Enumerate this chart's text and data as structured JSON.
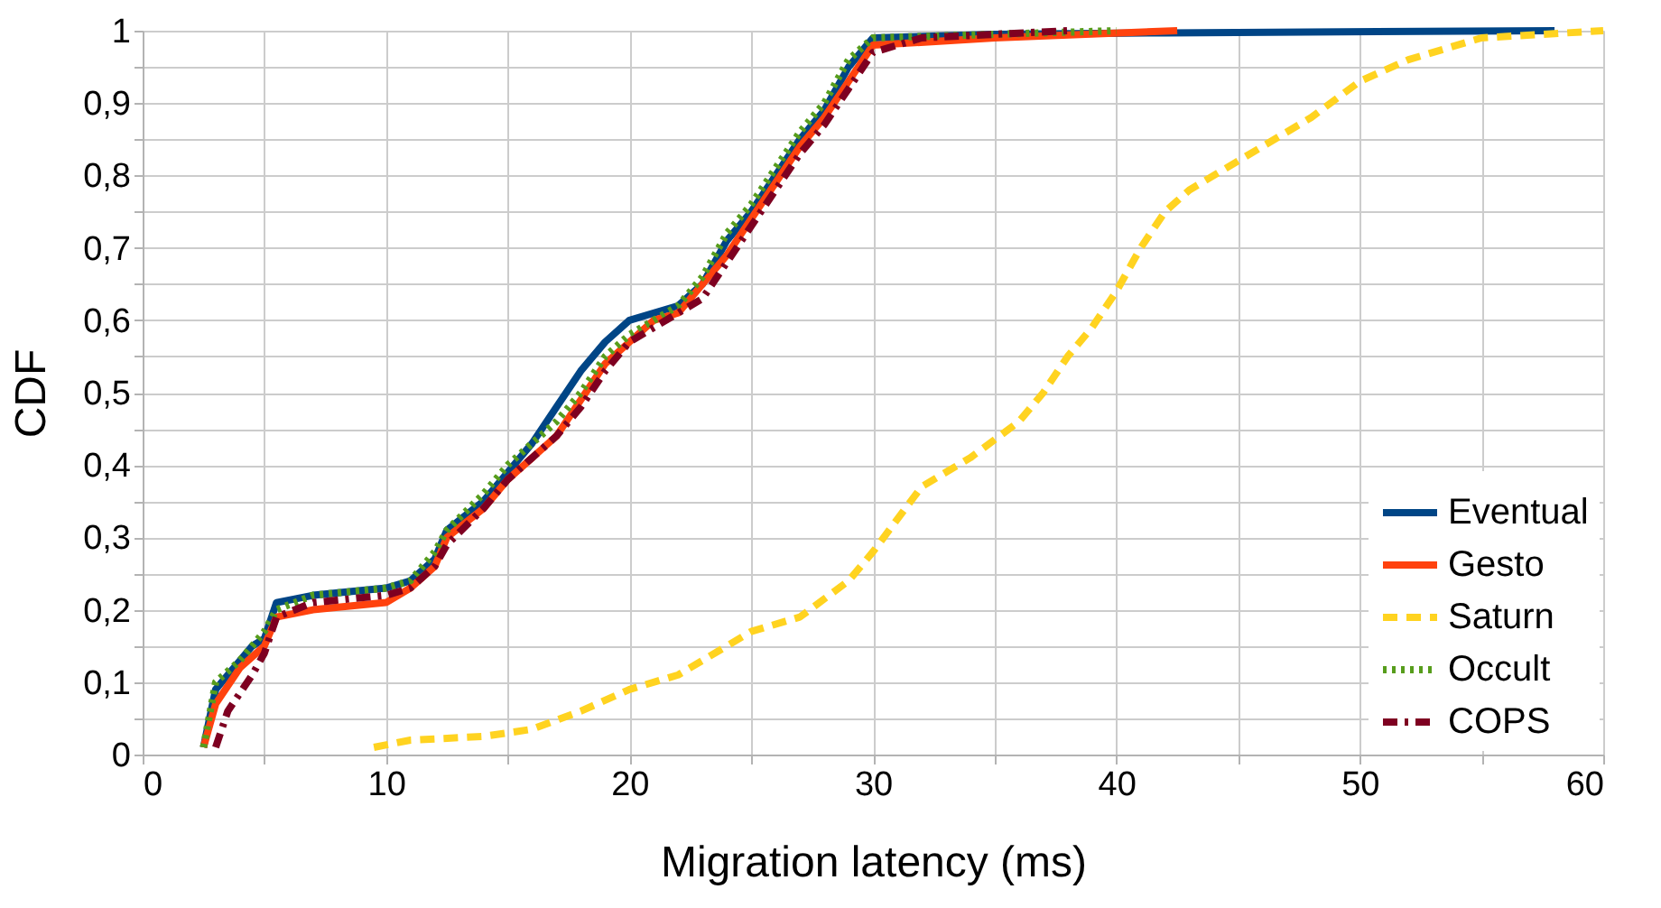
{
  "chart_data": {
    "type": "line",
    "xlabel": "Migration latency (ms)",
    "ylabel": "CDF",
    "xlim": [
      0,
      60
    ],
    "ylim": [
      0,
      1
    ],
    "xticks": [
      0,
      {
        "value": 5,
        "label": null
      },
      10,
      {
        "value": 15,
        "label": null
      },
      20,
      {
        "value": 25,
        "label": null
      },
      30,
      {
        "value": 35,
        "label": null
      },
      40,
      {
        "value": 45,
        "label": null
      },
      50,
      {
        "value": 55,
        "label": null
      },
      60
    ],
    "yticks": [
      0,
      {
        "value": 0.05,
        "label": null
      },
      {
        "value": 0.1,
        "label": "0,1"
      },
      {
        "value": 0.15,
        "label": null
      },
      {
        "value": 0.2,
        "label": "0,2"
      },
      {
        "value": 0.25,
        "label": null
      },
      {
        "value": 0.3,
        "label": "0,3"
      },
      {
        "value": 0.35,
        "label": null
      },
      {
        "value": 0.4,
        "label": "0,4"
      },
      {
        "value": 0.45,
        "label": null
      },
      {
        "value": 0.5,
        "label": "0,5"
      },
      {
        "value": 0.55,
        "label": null
      },
      {
        "value": 0.6,
        "label": "0,6"
      },
      {
        "value": 0.65,
        "label": null
      },
      {
        "value": 0.7,
        "label": "0,7"
      },
      {
        "value": 0.75,
        "label": null
      },
      {
        "value": 0.8,
        "label": "0,8"
      },
      {
        "value": 0.85,
        "label": null
      },
      {
        "value": 0.9,
        "label": "0,9"
      },
      {
        "value": 0.95,
        "label": null
      },
      1
    ],
    "grid": true,
    "legend": "bottom right",
    "marker": "none",
    "series": [
      {
        "name": "Eventual",
        "color": "#004586",
        "line_style": "solid",
        "x": [
          2.5,
          3,
          3.5,
          4.5,
          5,
          5.5,
          7,
          10,
          11,
          12,
          12.5,
          14,
          15,
          16,
          17,
          18,
          19,
          20,
          22,
          23,
          24,
          25,
          26,
          27,
          28,
          29,
          30,
          35,
          42,
          58
        ],
        "values": [
          0.01,
          0.09,
          0.11,
          0.15,
          0.16,
          0.21,
          0.22,
          0.23,
          0.24,
          0.27,
          0.31,
          0.35,
          0.39,
          0.43,
          0.48,
          0.53,
          0.57,
          0.6,
          0.62,
          0.65,
          0.71,
          0.75,
          0.8,
          0.85,
          0.89,
          0.95,
          0.99,
          0.995,
          0.997,
          1.0
        ]
      },
      {
        "name": "Gesto",
        "color": "#ff420e",
        "line_style": "solid",
        "x": [
          2.5,
          3,
          4,
          5,
          5.5,
          7,
          10,
          11,
          12,
          12.5,
          14,
          15,
          16,
          17,
          18,
          19,
          20,
          21,
          22,
          23,
          24,
          25,
          26,
          27,
          28,
          29,
          30,
          35,
          42.5
        ],
        "values": [
          0.01,
          0.07,
          0.12,
          0.15,
          0.19,
          0.2,
          0.21,
          0.23,
          0.26,
          0.3,
          0.34,
          0.38,
          0.41,
          0.44,
          0.49,
          0.54,
          0.57,
          0.6,
          0.61,
          0.65,
          0.69,
          0.74,
          0.79,
          0.84,
          0.88,
          0.93,
          0.98,
          0.99,
          1.0
        ]
      },
      {
        "name": "Saturn",
        "color": "#ffd320",
        "line_style": "dashed",
        "x": [
          9.5,
          11,
          14,
          16,
          18,
          20,
          22,
          23,
          25,
          27,
          29,
          30,
          32,
          34,
          36,
          37,
          38,
          39,
          40,
          41,
          42,
          43,
          44,
          46,
          48,
          50,
          52,
          55,
          60
        ],
        "values": [
          0.01,
          0.02,
          0.025,
          0.035,
          0.06,
          0.09,
          0.11,
          0.13,
          0.17,
          0.19,
          0.24,
          0.28,
          0.37,
          0.41,
          0.46,
          0.5,
          0.55,
          0.59,
          0.64,
          0.7,
          0.75,
          0.78,
          0.8,
          0.84,
          0.88,
          0.93,
          0.96,
          0.99,
          1.0
        ]
      },
      {
        "name": "Occult",
        "color": "#579d1c",
        "line_style": "dotted",
        "x": [
          2.5,
          3,
          4,
          5,
          5.5,
          7,
          10,
          11,
          12,
          12.5,
          14,
          15,
          16,
          17,
          18,
          19,
          20,
          22,
          23,
          24,
          25,
          26,
          27,
          28,
          29,
          30,
          35,
          40
        ],
        "values": [
          0.01,
          0.1,
          0.13,
          0.17,
          0.2,
          0.22,
          0.23,
          0.24,
          0.28,
          0.31,
          0.36,
          0.4,
          0.43,
          0.46,
          0.5,
          0.55,
          0.58,
          0.62,
          0.66,
          0.72,
          0.76,
          0.81,
          0.86,
          0.9,
          0.96,
          0.99,
          0.995,
          1.0
        ]
      },
      {
        "name": "COPS",
        "color": "#7e0021",
        "line_style": "dashdot",
        "x": [
          3,
          3.5,
          4.5,
          5,
          5.5,
          7,
          10,
          11,
          12,
          12.5,
          14,
          15,
          16,
          17,
          18,
          19,
          20,
          22,
          23,
          24,
          25,
          26,
          27,
          28,
          29,
          30,
          32,
          38
        ],
        "values": [
          0.01,
          0.06,
          0.11,
          0.14,
          0.19,
          0.21,
          0.22,
          0.23,
          0.26,
          0.29,
          0.34,
          0.38,
          0.41,
          0.44,
          0.48,
          0.53,
          0.57,
          0.61,
          0.63,
          0.68,
          0.73,
          0.78,
          0.83,
          0.87,
          0.92,
          0.97,
          0.99,
          1.0
        ]
      }
    ]
  }
}
